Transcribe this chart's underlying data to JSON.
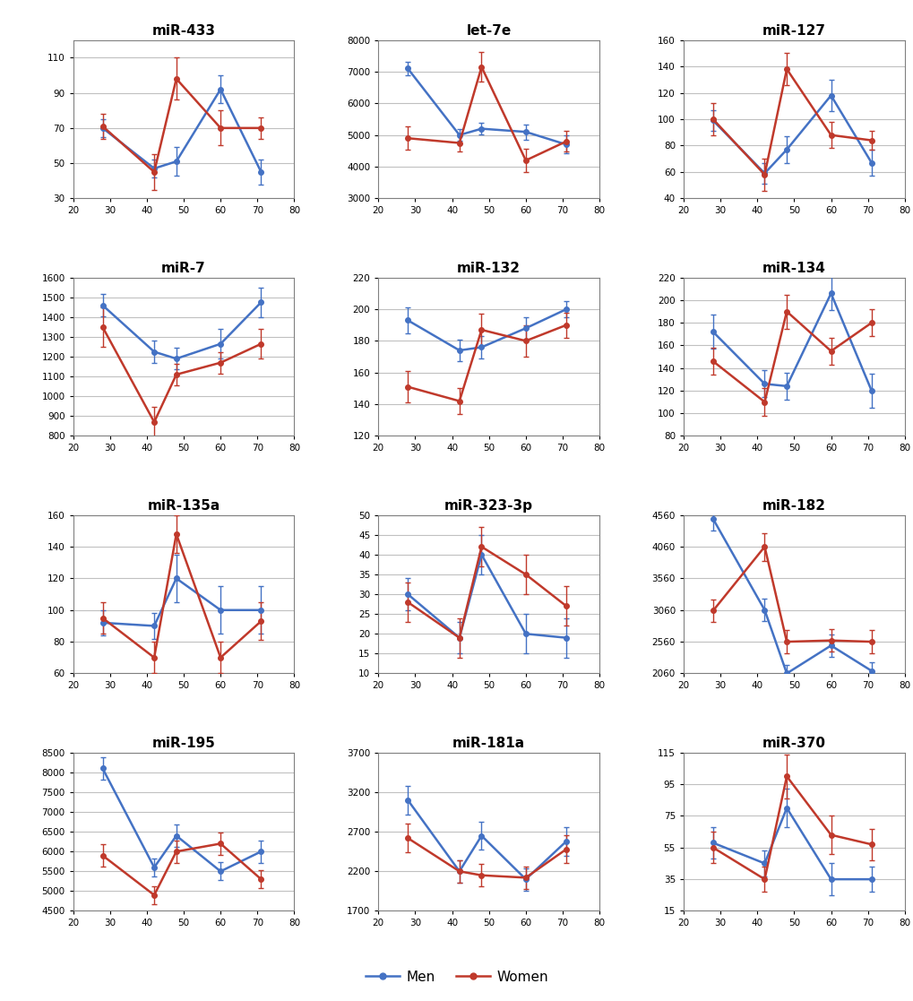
{
  "x": [
    28,
    42,
    48,
    60,
    71
  ],
  "subplots": [
    {
      "title": "miR-433",
      "ylim": [
        30,
        120
      ],
      "yticks": [
        30,
        50,
        70,
        90,
        110
      ],
      "men_y": [
        70,
        47,
        51,
        92,
        45
      ],
      "men_err": [
        5,
        5,
        8,
        8,
        7
      ],
      "women_y": [
        71,
        45,
        98,
        70,
        70
      ],
      "women_err": [
        7,
        10,
        12,
        10,
        6
      ]
    },
    {
      "title": "let-7e",
      "ylim": [
        3000,
        8000
      ],
      "yticks": [
        3000,
        4000,
        5000,
        6000,
        7000,
        8000
      ],
      "men_y": [
        7100,
        5000,
        5200,
        5100,
        4700
      ],
      "men_err": [
        220,
        190,
        190,
        240,
        280
      ],
      "women_y": [
        4900,
        4750,
        7150,
        4200,
        4800
      ],
      "women_err": [
        370,
        270,
        470,
        370,
        320
      ]
    },
    {
      "title": "miR-127",
      "ylim": [
        40,
        160
      ],
      "yticks": [
        40,
        60,
        80,
        100,
        120,
        140,
        160
      ],
      "men_y": [
        99,
        59,
        77,
        118,
        67
      ],
      "men_err": [
        8,
        8,
        10,
        12,
        10
      ],
      "women_y": [
        100,
        58,
        138,
        88,
        84
      ],
      "women_err": [
        12,
        12,
        12,
        10,
        7
      ]
    },
    {
      "title": "miR-7",
      "ylim": [
        800,
        1600
      ],
      "yticks": [
        800,
        900,
        1000,
        1100,
        1200,
        1300,
        1400,
        1500,
        1600
      ],
      "men_y": [
        1460,
        1225,
        1190,
        1265,
        1475
      ],
      "men_err": [
        55,
        55,
        55,
        75,
        75
      ],
      "women_y": [
        1350,
        870,
        1110,
        1170,
        1265
      ],
      "women_err": [
        100,
        75,
        55,
        55,
        75
      ]
    },
    {
      "title": "miR-132",
      "ylim": [
        120,
        220
      ],
      "yticks": [
        120,
        140,
        160,
        180,
        200,
        220
      ],
      "men_y": [
        193,
        174,
        176,
        188,
        200
      ],
      "men_err": [
        8,
        7,
        7,
        7,
        5
      ],
      "women_y": [
        151,
        142,
        187,
        180,
        190
      ],
      "women_err": [
        10,
        8,
        10,
        10,
        8
      ]
    },
    {
      "title": "miR-134",
      "ylim": [
        80,
        220
      ],
      "yticks": [
        80,
        100,
        120,
        140,
        160,
        180,
        200,
        220
      ],
      "men_y": [
        172,
        126,
        124,
        206,
        120
      ],
      "men_err": [
        15,
        12,
        12,
        15,
        15
      ],
      "women_y": [
        146,
        110,
        190,
        155,
        180
      ],
      "women_err": [
        12,
        12,
        15,
        12,
        12
      ]
    },
    {
      "title": "miR-135a",
      "ylim": [
        60,
        160
      ],
      "yticks": [
        60,
        80,
        100,
        120,
        140,
        160
      ],
      "men_y": [
        92,
        90,
        120,
        100,
        100
      ],
      "men_err": [
        8,
        8,
        15,
        15,
        15
      ],
      "women_y": [
        95,
        70,
        148,
        70,
        93
      ],
      "women_err": [
        10,
        10,
        12,
        10,
        12
      ]
    },
    {
      "title": "miR-323-3p",
      "ylim": [
        10,
        50
      ],
      "yticks": [
        10,
        15,
        20,
        25,
        30,
        35,
        40,
        45,
        50
      ],
      "men_y": [
        30,
        19,
        40,
        20,
        19
      ],
      "men_err": [
        4,
        4,
        5,
        5,
        5
      ],
      "women_y": [
        28,
        19,
        42,
        35,
        27
      ],
      "women_err": [
        5,
        5,
        5,
        5,
        5
      ]
    },
    {
      "title": "miR-182",
      "ylim": [
        2060,
        4560
      ],
      "yticks": [
        2060,
        2560,
        3060,
        3560,
        4060,
        4560
      ],
      "men_y": [
        4500,
        3060,
        2060,
        2500,
        2100
      ],
      "men_err": [
        180,
        180,
        130,
        180,
        130
      ],
      "women_y": [
        3050,
        4060,
        2560,
        2580,
        2560
      ],
      "women_err": [
        180,
        220,
        180,
        180,
        180
      ]
    },
    {
      "title": "miR-195",
      "ylim": [
        4500,
        8500
      ],
      "yticks": [
        4500,
        5000,
        5500,
        6000,
        6500,
        7000,
        7500,
        8000,
        8500
      ],
      "men_y": [
        8100,
        5600,
        6400,
        5500,
        6000
      ],
      "men_err": [
        280,
        230,
        280,
        230,
        280
      ],
      "women_y": [
        5900,
        4900,
        6000,
        6200,
        5300
      ],
      "women_err": [
        280,
        230,
        280,
        280,
        230
      ]
    },
    {
      "title": "miR-181a",
      "ylim": [
        1700,
        3700
      ],
      "yticks": [
        1700,
        2200,
        2700,
        3200,
        3700
      ],
      "men_y": [
        3100,
        2200,
        2650,
        2100,
        2580
      ],
      "men_err": [
        180,
        140,
        180,
        140,
        180
      ],
      "women_y": [
        2620,
        2200,
        2150,
        2120,
        2480
      ],
      "women_err": [
        180,
        140,
        140,
        140,
        180
      ]
    },
    {
      "title": "miR-370",
      "ylim": [
        15,
        115
      ],
      "yticks": [
        15,
        35,
        55,
        75,
        95,
        115
      ],
      "men_y": [
        58,
        45,
        80,
        35,
        35
      ],
      "men_err": [
        10,
        8,
        12,
        10,
        8
      ],
      "women_y": [
        55,
        35,
        100,
        63,
        57
      ],
      "women_err": [
        10,
        8,
        14,
        12,
        10
      ]
    }
  ],
  "men_color": "#4472C4",
  "women_color": "#C0392B",
  "marker_size": 4,
  "line_width": 1.8,
  "grid_color": "#C0C0C0",
  "background_color": "#FFFFFF"
}
